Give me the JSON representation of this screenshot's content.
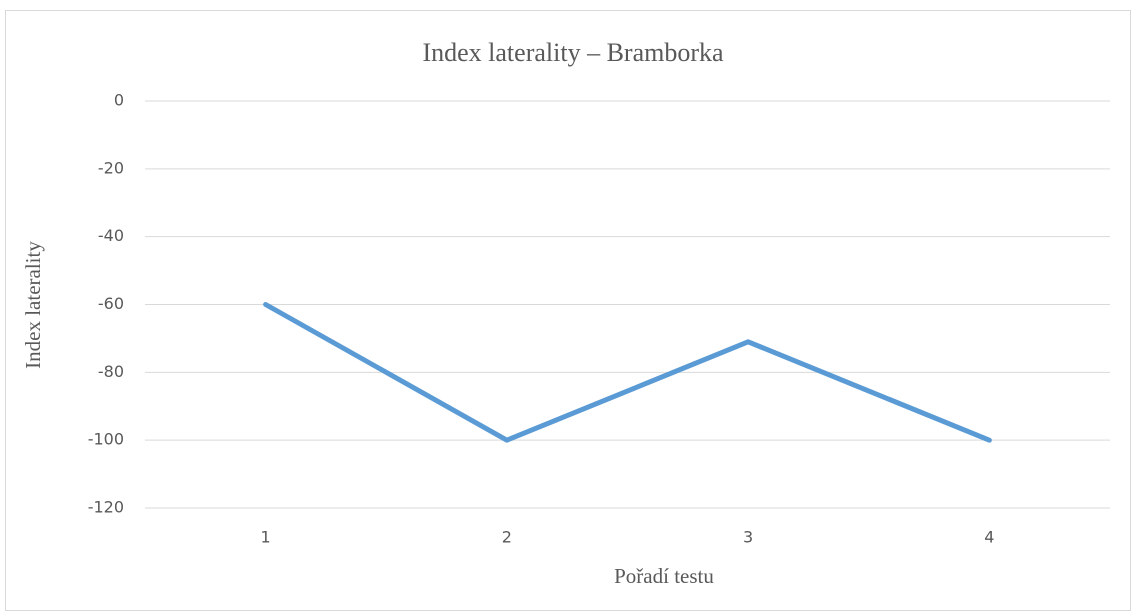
{
  "chart_data": {
    "type": "line",
    "title": "Index laterality – Bramborka",
    "x_label": "Pořadí testu",
    "y_label": "Index laterality",
    "categories": [
      "1",
      "2",
      "3",
      "4"
    ],
    "values": [
      -60,
      -100,
      -71,
      -100
    ],
    "color": "#5b9bd5",
    "ylim": [
      -120,
      0
    ],
    "yticks": [
      -120,
      -100,
      -80,
      -60,
      -40,
      -20,
      0
    ],
    "grid": true
  }
}
